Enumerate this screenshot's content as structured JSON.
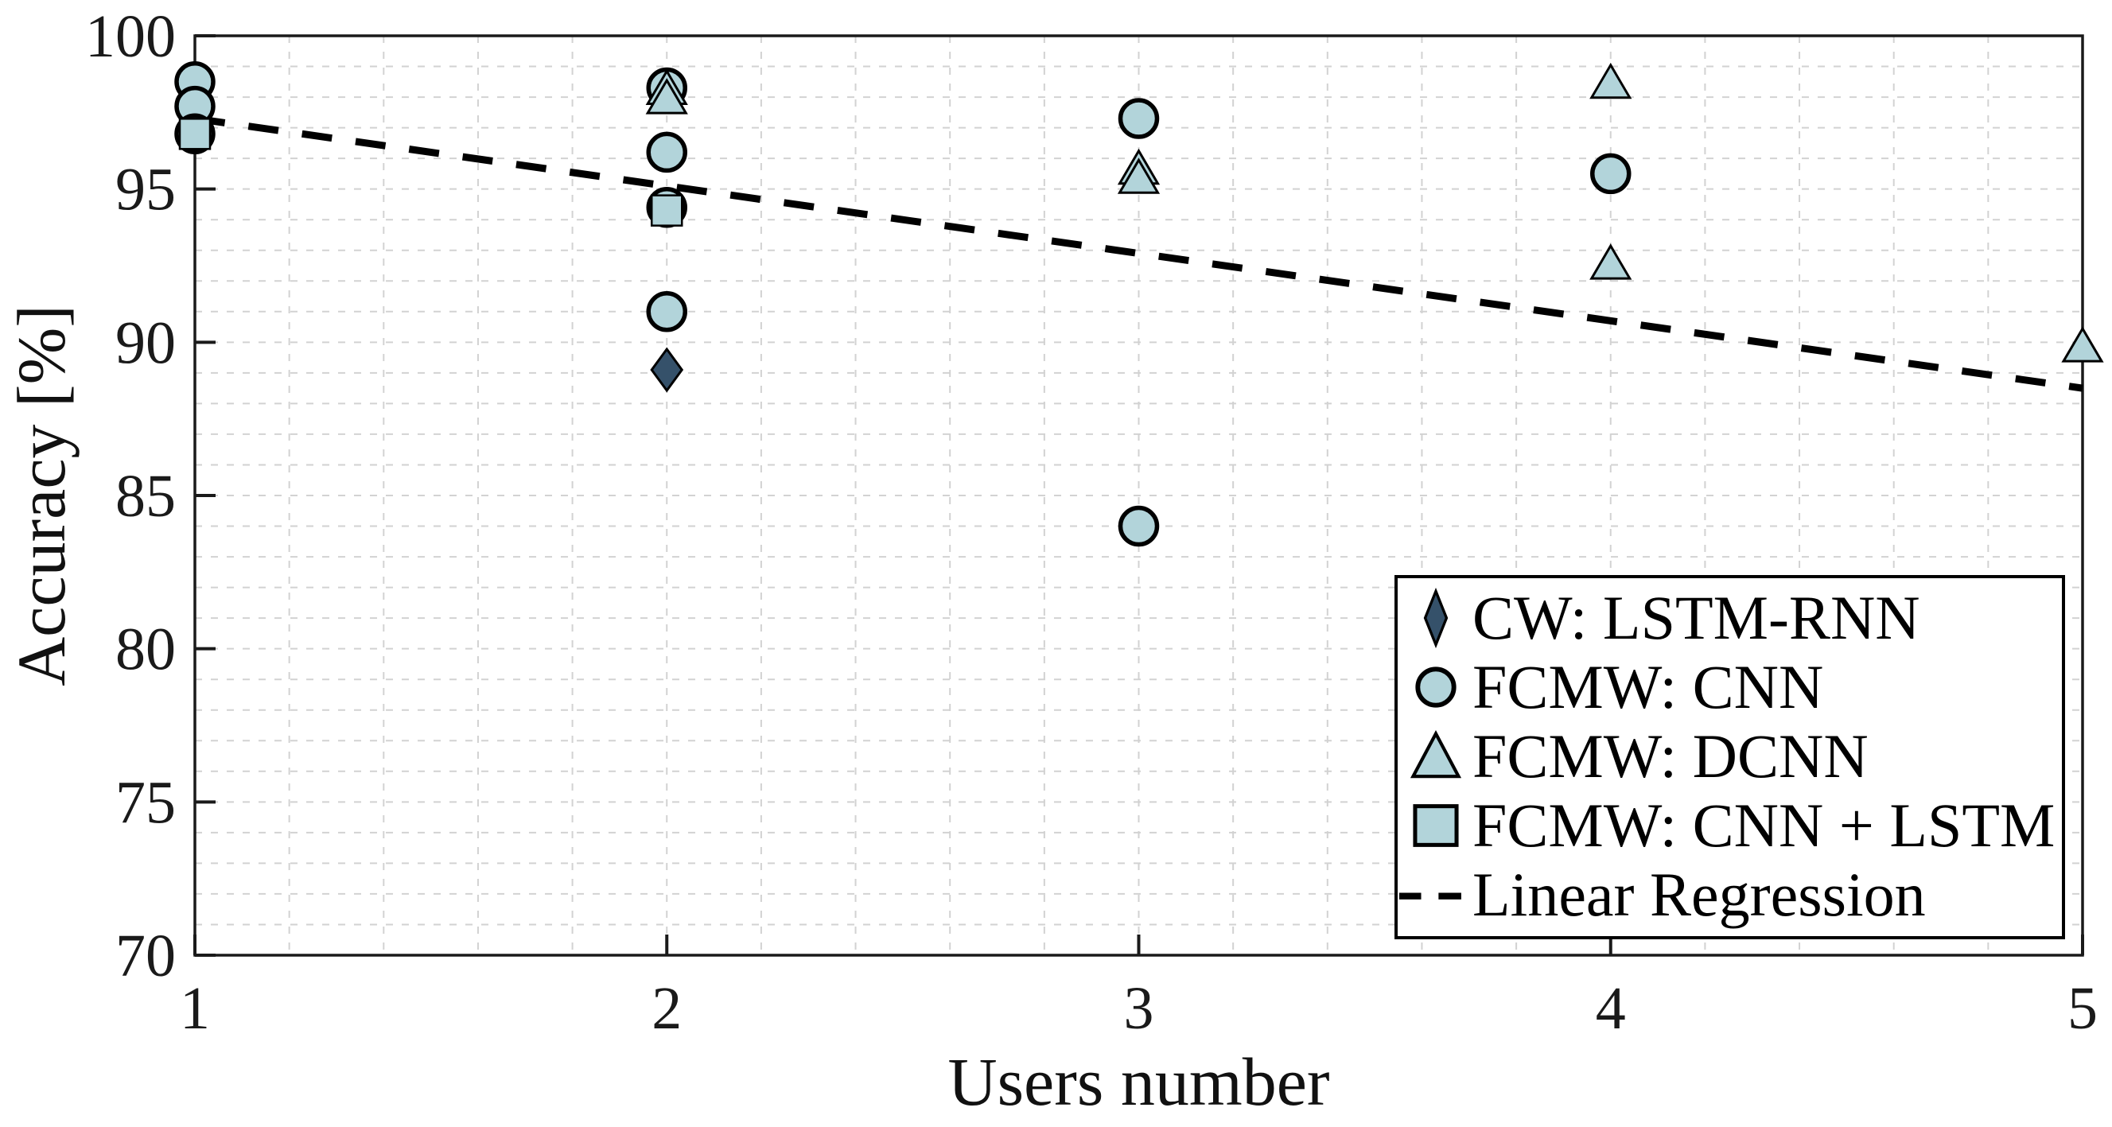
{
  "chart_data": {
    "type": "scatter",
    "title": "",
    "xlabel": "Users number",
    "ylabel": "Accuracy [%]",
    "xlim": [
      1,
      5
    ],
    "ylim": [
      70,
      100
    ],
    "xticks": [
      1,
      2,
      3,
      4,
      5
    ],
    "yticks": [
      70,
      75,
      80,
      85,
      90,
      95,
      100
    ],
    "grid": "minor",
    "minor_grid": {
      "x_step": 0.2,
      "y_step": 1,
      "color": "#d2d2d2"
    },
    "legend_position": "bottom-right",
    "series": [
      {
        "name": "CW: LSTM-RNN",
        "marker": "diamond",
        "fill": "#35516a",
        "points": [
          [
            2,
            89.1
          ]
        ]
      },
      {
        "name": "FCMW: CNN",
        "marker": "circle",
        "fill": "#b2d4da",
        "points": [
          [
            1,
            98.5
          ],
          [
            1,
            97.7
          ],
          [
            1,
            96.8
          ],
          [
            2,
            98.3
          ],
          [
            2,
            96.2
          ],
          [
            2,
            94.4
          ],
          [
            2,
            91
          ],
          [
            3,
            97.3
          ],
          [
            3,
            84
          ],
          [
            4,
            95.5
          ]
        ]
      },
      {
        "name": "FCMW: DCNN",
        "marker": "triangle",
        "fill": "#b2d4da",
        "points": [
          [
            2,
            98.3
          ],
          [
            2,
            98
          ],
          [
            3,
            95.7
          ],
          [
            3,
            95.4
          ],
          [
            4,
            98.5
          ],
          [
            4,
            92.6
          ],
          [
            5,
            89.9
          ]
        ]
      },
      {
        "name": "FCMW: CNN + LSTM",
        "marker": "square",
        "fill": "#b2d4da",
        "points": [
          [
            1,
            96.8
          ],
          [
            2,
            94.3
          ]
        ]
      }
    ],
    "regression": {
      "name": "Linear Regression",
      "style": "dashed",
      "color": "#000000",
      "x": [
        1,
        5
      ],
      "y": [
        97.3,
        88.5
      ]
    },
    "legend": {
      "items": [
        {
          "label": "CW: LSTM-RNN",
          "marker": "diamond"
        },
        {
          "label": "FCMW: CNN",
          "marker": "circle"
        },
        {
          "label": "FCMW: DCNN",
          "marker": "triangle"
        },
        {
          "label": "FCMW: CNN + LSTM",
          "marker": "square"
        },
        {
          "label": "Linear Regression",
          "marker": "dash"
        }
      ]
    }
  },
  "colors": {
    "marker_light": "#b2d4da",
    "marker_dark": "#35516a",
    "grid": "#d2d2d2",
    "axis": "#1a1a1a",
    "regression": "#000000",
    "background": "#ffffff"
  }
}
